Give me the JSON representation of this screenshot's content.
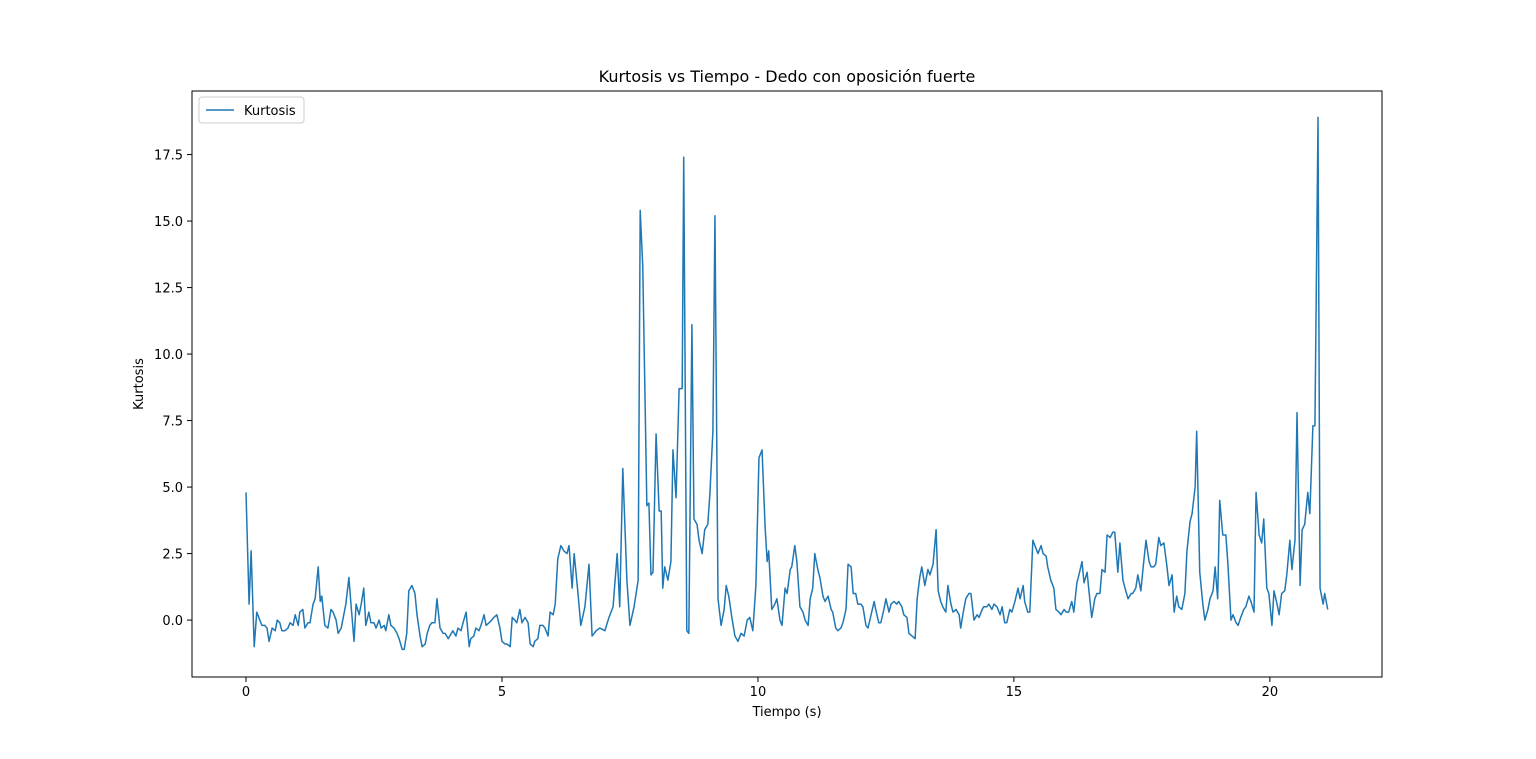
{
  "chart_data": {
    "type": "line",
    "title": "Kurtosis vs Tiempo - Dedo con oposición fuerte",
    "xlabel": "Tiempo (s)",
    "ylabel": "Kurtosis",
    "legend": "upper left",
    "xlim": [
      -1.055,
      22.19
    ],
    "ylim": [
      -2.14,
      19.89
    ],
    "xticks": [
      0,
      5,
      10,
      15,
      20
    ],
    "yticks": [
      {
        "value": 0,
        "label": "0.0"
      },
      2.5,
      {
        "value": 5,
        "label": "5.0"
      },
      7.5,
      {
        "value": 10,
        "label": "10.0"
      },
      12.5,
      {
        "value": 15,
        "label": "15.0"
      },
      17.5
    ],
    "x": [
      0.0,
      0.06,
      0.1,
      0.16,
      0.21,
      0.25,
      0.31,
      0.37,
      0.41,
      0.45,
      0.51,
      0.57,
      0.61,
      0.66,
      0.7,
      0.76,
      0.82,
      0.86,
      0.92,
      0.96,
      1.02,
      1.05,
      1.11,
      1.15,
      1.21,
      1.25,
      1.31,
      1.35,
      1.41,
      1.45,
      1.48,
      1.54,
      1.6,
      1.66,
      1.7,
      1.76,
      1.8,
      1.86,
      1.91,
      1.95,
      2.01,
      2.05,
      2.11,
      2.15,
      2.21,
      2.25,
      2.3,
      2.34,
      2.4,
      2.44,
      2.5,
      2.54,
      2.6,
      2.64,
      2.7,
      2.73,
      2.79,
      2.83,
      2.89,
      2.95,
      2.99,
      3.05,
      3.09,
      3.14,
      3.18,
      3.24,
      3.3,
      3.34,
      3.4,
      3.44,
      3.5,
      3.54,
      3.59,
      3.63,
      3.69,
      3.73,
      3.79,
      3.85,
      3.89,
      3.95,
      3.98,
      4.04,
      4.1,
      4.14,
      4.2,
      4.24,
      4.3,
      4.36,
      4.39,
      4.45,
      4.49,
      4.55,
      4.59,
      4.65,
      4.69,
      4.75,
      4.8,
      4.84,
      4.9,
      4.96,
      5.0,
      5.06,
      5.1,
      5.16,
      5.2,
      5.25,
      5.29,
      5.35,
      5.39,
      5.45,
      5.51,
      5.55,
      5.61,
      5.64,
      5.7,
      5.74,
      5.8,
      5.84,
      5.9,
      5.94,
      6.0,
      6.04,
      6.09,
      6.15,
      6.21,
      6.27,
      6.31,
      6.37,
      6.41,
      6.48,
      6.54,
      6.62,
      6.7,
      6.76,
      6.84,
      6.91,
      7.01,
      7.09,
      7.17,
      7.25,
      7.3,
      7.36,
      7.44,
      7.5,
      7.58,
      7.66,
      7.7,
      7.75,
      7.83,
      7.87,
      7.91,
      7.95,
      8.01,
      8.07,
      8.11,
      8.14,
      8.18,
      8.24,
      8.3,
      8.34,
      8.4,
      8.46,
      8.52,
      8.55,
      8.61,
      8.65,
      8.71,
      8.75,
      8.81,
      8.85,
      8.91,
      8.96,
      9.02,
      9.06,
      9.12,
      9.16,
      9.22,
      9.28,
      9.34,
      9.38,
      9.43,
      9.49,
      9.55,
      9.61,
      9.67,
      9.73,
      9.79,
      9.84,
      9.9,
      9.96,
      10.02,
      10.08,
      10.14,
      10.18,
      10.21,
      10.27,
      10.33,
      10.37,
      10.43,
      10.47,
      10.53,
      10.57,
      10.63,
      10.66,
      10.72,
      10.76,
      10.82,
      10.88,
      10.92,
      10.98,
      11.02,
      11.07,
      11.11,
      11.17,
      11.21,
      11.27,
      11.31,
      11.37,
      11.43,
      11.46,
      11.52,
      11.56,
      11.62,
      11.66,
      11.72,
      11.76,
      11.82,
      11.86,
      11.91,
      11.95,
      12.01,
      12.05,
      12.11,
      12.15,
      12.21,
      12.27,
      12.3,
      12.36,
      12.4,
      12.46,
      12.5,
      12.56,
      12.6,
      12.66,
      12.71,
      12.75,
      12.81,
      12.85,
      12.91,
      12.95,
      13.01,
      13.07,
      13.11,
      13.16,
      13.2,
      13.26,
      13.32,
      13.36,
      13.42,
      13.48,
      13.52,
      13.57,
      13.61,
      13.67,
      13.71,
      13.77,
      13.81,
      13.87,
      13.93,
      13.96,
      14.02,
      14.06,
      14.12,
      14.16,
      14.22,
      14.28,
      14.32,
      14.38,
      14.41,
      14.47,
      14.51,
      14.57,
      14.61,
      14.67,
      14.73,
      14.77,
      14.82,
      14.86,
      14.92,
      14.96,
      15.02,
      15.08,
      15.12,
      15.18,
      15.21,
      15.27,
      15.31,
      15.37,
      15.43,
      15.47,
      15.53,
      15.57,
      15.63,
      15.66,
      15.72,
      15.78,
      15.82,
      15.88,
      15.92,
      15.98,
      16.02,
      16.07,
      16.13,
      16.17,
      16.23,
      16.27,
      16.33,
      16.37,
      16.43,
      16.46,
      16.52,
      16.58,
      16.62,
      16.68,
      16.72,
      16.78,
      16.82,
      16.88,
      16.93,
      16.97,
      17.03,
      17.07,
      17.13,
      17.17,
      17.23,
      17.29,
      17.32,
      17.38,
      17.42,
      17.48,
      17.52,
      17.58,
      17.64,
      17.68,
      17.73,
      17.77,
      17.83,
      17.87,
      17.93,
      17.99,
      18.03,
      18.09,
      18.13,
      18.18,
      18.22,
      18.28,
      18.34,
      18.38,
      18.44,
      18.48,
      18.54,
      18.57,
      18.63,
      18.69,
      18.73,
      18.79,
      18.83,
      18.89,
      18.93,
      18.98,
      19.02,
      19.08,
      19.14,
      19.18,
      19.24,
      19.28,
      19.34,
      19.38,
      19.43,
      19.49,
      19.53,
      19.59,
      19.63,
      19.69,
      19.73,
      19.79,
      19.84,
      19.88,
      19.94,
      19.98,
      20.04,
      20.08,
      20.14,
      20.18,
      20.23,
      20.29,
      20.33,
      20.39,
      20.43,
      20.49,
      20.53,
      20.59,
      20.63,
      20.68,
      20.74,
      20.78,
      20.84,
      20.88,
      20.94,
      20.98,
      21.04,
      21.07,
      21.13
    ],
    "series": [
      {
        "name": "Kurtosis",
        "color": "#1f77b4",
        "values": [
          4.8,
          0.6,
          2.6,
          -1.0,
          0.3,
          0.1,
          -0.2,
          -0.2,
          -0.3,
          -0.8,
          -0.3,
          -0.4,
          0.0,
          -0.1,
          -0.4,
          -0.4,
          -0.3,
          -0.1,
          -0.2,
          0.2,
          -0.2,
          0.3,
          0.4,
          -0.3,
          -0.1,
          -0.1,
          0.6,
          0.8,
          2.0,
          0.7,
          0.9,
          -0.2,
          -0.3,
          0.4,
          0.3,
          0.0,
          -0.5,
          -0.3,
          0.2,
          0.6,
          1.6,
          0.6,
          -0.8,
          0.6,
          0.2,
          0.6,
          1.2,
          -0.2,
          0.3,
          -0.1,
          -0.1,
          -0.3,
          0.0,
          -0.3,
          -0.2,
          -0.4,
          0.2,
          -0.2,
          -0.3,
          -0.5,
          -0.7,
          -1.1,
          -1.1,
          -0.5,
          1.1,
          1.3,
          1.0,
          0.2,
          -0.6,
          -1.0,
          -0.9,
          -0.5,
          -0.2,
          -0.1,
          -0.1,
          0.8,
          -0.3,
          -0.5,
          -0.5,
          -0.7,
          -0.6,
          -0.4,
          -0.6,
          -0.3,
          -0.4,
          -0.1,
          0.3,
          -1.0,
          -0.7,
          -0.6,
          -0.3,
          -0.4,
          -0.2,
          0.2,
          -0.2,
          -0.1,
          0.0,
          0.1,
          0.2,
          -0.3,
          -0.8,
          -0.9,
          -0.9,
          -1.0,
          0.1,
          0.0,
          -0.1,
          0.4,
          -0.1,
          0.1,
          -0.1,
          -0.9,
          -1.0,
          -0.8,
          -0.7,
          -0.2,
          -0.2,
          -0.3,
          -0.6,
          0.3,
          0.2,
          0.6,
          2.3,
          2.8,
          2.6,
          2.5,
          2.8,
          1.2,
          2.5,
          1.1,
          -0.2,
          0.5,
          2.1,
          -0.6,
          -0.4,
          -0.3,
          -0.4,
          0.1,
          0.5,
          2.5,
          0.5,
          5.7,
          1.5,
          -0.2,
          0.5,
          1.5,
          15.4,
          13.3,
          4.3,
          4.4,
          1.7,
          1.8,
          7.0,
          4.1,
          4.1,
          1.2,
          2.0,
          1.5,
          2.2,
          6.4,
          4.6,
          8.7,
          8.7,
          17.4,
          -0.4,
          -0.5,
          11.1,
          3.8,
          3.6,
          3.0,
          2.5,
          3.4,
          3.6,
          4.7,
          7.1,
          15.2,
          0.8,
          -0.2,
          0.4,
          1.3,
          0.9,
          0.1,
          -0.6,
          -0.8,
          -0.5,
          -0.6,
          0.0,
          0.1,
          -0.4,
          1.3,
          6.1,
          6.4,
          3.5,
          2.2,
          2.6,
          0.4,
          0.6,
          0.8,
          0.0,
          -0.2,
          1.2,
          1.0,
          1.9,
          2.0,
          2.8,
          2.2,
          0.5,
          0.3,
          0.0,
          -0.2,
          0.8,
          1.2,
          2.5,
          1.9,
          1.6,
          0.9,
          0.7,
          0.9,
          0.4,
          0.3,
          -0.3,
          -0.4,
          -0.3,
          -0.1,
          0.4,
          2.1,
          2.0,
          1.0,
          1.0,
          0.6,
          0.6,
          0.5,
          -0.2,
          -0.3,
          0.2,
          0.7,
          0.4,
          -0.1,
          -0.1,
          0.4,
          0.8,
          0.3,
          0.6,
          0.7,
          0.6,
          0.7,
          0.5,
          0.2,
          0.1,
          -0.5,
          -0.6,
          -0.7,
          0.8,
          1.6,
          2.0,
          1.3,
          1.9,
          1.7,
          2.1,
          3.4,
          1.1,
          0.7,
          0.5,
          0.3,
          1.3,
          0.6,
          0.3,
          0.4,
          0.2,
          -0.3,
          0.4,
          0.8,
          1.0,
          1.0,
          0.0,
          0.2,
          0.1,
          0.4,
          0.5,
          0.5,
          0.6,
          0.4,
          0.6,
          0.5,
          0.2,
          0.5,
          -0.1,
          -0.1,
          0.4,
          0.3,
          0.7,
          1.2,
          0.8,
          1.3,
          0.7,
          0.3,
          0.3,
          3.0,
          2.7,
          2.5,
          2.8,
          2.5,
          2.4,
          2.0,
          1.5,
          1.2,
          0.4,
          0.3,
          0.2,
          0.4,
          0.3,
          0.3,
          0.7,
          0.3,
          1.4,
          1.7,
          2.2,
          1.4,
          1.8,
          1.2,
          0.1,
          0.8,
          1.0,
          1.0,
          1.9,
          1.8,
          3.2,
          3.1,
          3.3,
          3.3,
          1.8,
          2.9,
          1.5,
          1.2,
          0.8,
          1.0,
          1.0,
          1.2,
          1.7,
          1.1,
          1.9,
          3.0,
          2.2,
          2.0,
          2.0,
          2.1,
          3.1,
          2.8,
          2.9,
          2.0,
          1.3,
          1.7,
          0.3,
          0.9,
          0.5,
          0.4,
          1.0,
          2.6,
          3.7,
          4.0,
          5.0,
          7.1,
          1.8,
          0.6,
          0.0,
          0.4,
          0.8,
          1.1,
          2.0,
          0.8,
          4.5,
          3.2,
          3.2,
          2.1,
          0.0,
          0.2,
          -0.1,
          -0.2,
          0.1,
          0.4,
          0.5,
          0.9,
          0.7,
          0.3,
          4.8,
          3.2,
          2.9,
          3.8,
          1.2,
          1.0,
          -0.2,
          1.1,
          0.6,
          0.2,
          1.0,
          1.1,
          1.7,
          3.0,
          1.9,
          3.0,
          7.8,
          1.3,
          3.4,
          3.6,
          4.8,
          4.0,
          7.3,
          7.3,
          18.9,
          1.2,
          0.6,
          1.0,
          0.4
        ]
      }
    ]
  }
}
